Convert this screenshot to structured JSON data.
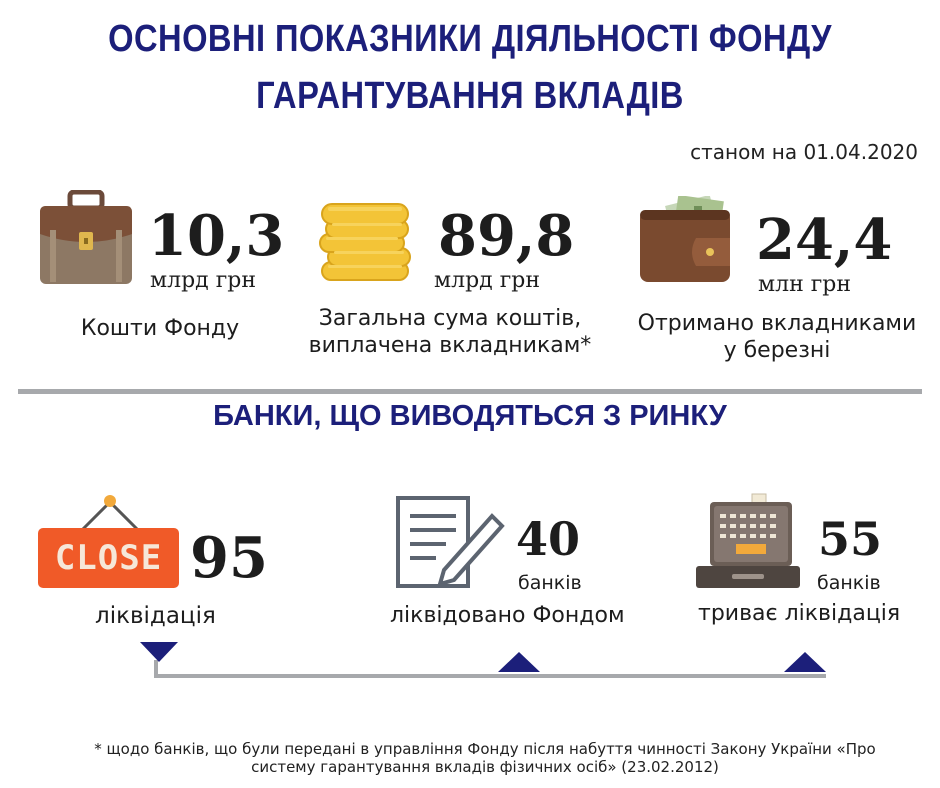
{
  "title": {
    "line1": "ОСНОВНІ ПОКАЗНИКИ ДІЯЛЬНОСТІ ФОНДУ",
    "line2": "ГАРАНТУВАННЯ ВКЛАДІВ"
  },
  "date": "станом на 01.04.2020",
  "stats": [
    {
      "icon": "briefcase-icon",
      "value": "10,3",
      "unit": "млрд грн",
      "caption": "Кошти Фонду"
    },
    {
      "icon": "coins-icon",
      "value": "89,8",
      "unit": "млрд грн",
      "caption_line1": "Загальна сума коштів,",
      "caption_line2": "виплачена вкладникам*"
    },
    {
      "icon": "wallet-icon",
      "value": "24,4",
      "unit": "млн грн",
      "caption_line1": "Отримано вкладниками",
      "caption_line2": "у березні"
    }
  ],
  "subtitle": "БАНКИ, ЩО ВИВОДЯТЬСЯ З РИНКУ",
  "banks": {
    "close_sign": "CLOSE",
    "total": {
      "value": "95",
      "label": "ліквідація"
    },
    "liquidated": {
      "value": "40",
      "unit": "банків",
      "label": "ліквідовано Фондом"
    },
    "ongoing": {
      "value": "55",
      "unit": "банків",
      "label": "триває ліквідація"
    }
  },
  "footnote": {
    "line1": "* щодо банків, що були передані в управління Фонду після набуття чинності Закону України «Про",
    "line2": "систему гарантування вкладів фізичних осіб» (23.02.2012)"
  },
  "colors": {
    "title": "#1c1f7a",
    "close": "#f05a28",
    "divider": "#a7a9ac",
    "marker": "#1c1f7a"
  }
}
